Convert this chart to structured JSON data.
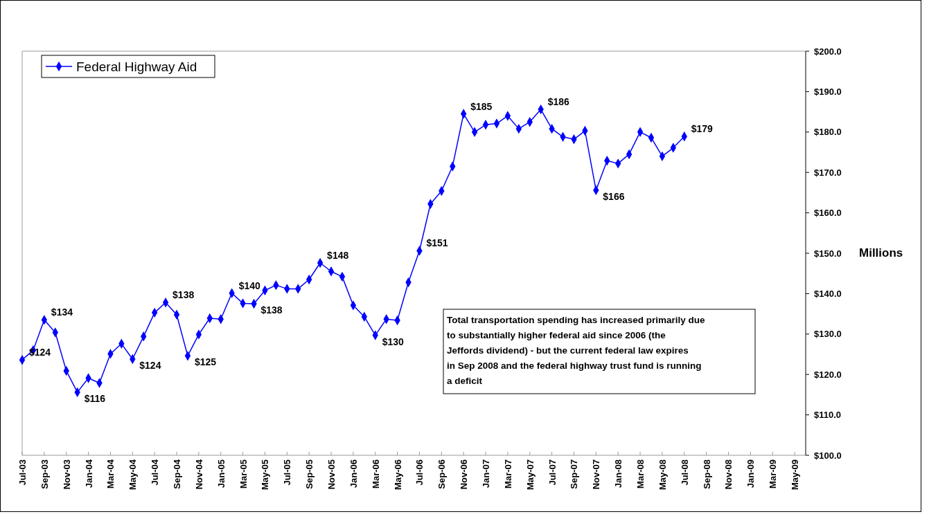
{
  "chart_data": {
    "type": "line",
    "categories": [
      "Jul-03",
      null,
      "Sep-03",
      null,
      "Nov-03",
      null,
      "Jan-04",
      null,
      "Mar-04",
      null,
      "May-04",
      null,
      "Jul-04",
      null,
      "Sep-04",
      null,
      "Nov-04",
      null,
      "Jan-05",
      null,
      "Mar-05",
      null,
      "May-05",
      null,
      "Jul-05",
      null,
      "Sep-05",
      null,
      "Nov-05",
      null,
      "Jan-06",
      null,
      "Mar-06",
      null,
      "May-06",
      null,
      "Jul-06",
      null,
      "Sep-06",
      null,
      "Nov-06",
      null,
      "Jan-07",
      null,
      "Mar-07",
      null,
      "May-07",
      null,
      "Jul-07",
      null,
      "Sep-07",
      null,
      "Nov-07",
      null,
      "Jan-08",
      null,
      "Mar-08",
      null,
      "May-08",
      null,
      "Jul-08",
      null,
      "Sep-08",
      null,
      "Nov-08",
      null,
      "Jan-09",
      null,
      "Mar-09",
      null,
      "May-09",
      null
    ],
    "series": [
      {
        "name": "Federal Highway Aid",
        "color": "#0000ff",
        "values": [
          123.6,
          126.0,
          133.5,
          130.4,
          120.9,
          115.6,
          119.1,
          117.9,
          125.1,
          127.6,
          123.8,
          129.4,
          135.3,
          137.8,
          134.8,
          124.6,
          129.9,
          133.9,
          133.7,
          140.1,
          137.6,
          137.5,
          140.8,
          142.1,
          141.2,
          141.2,
          143.5,
          147.6,
          145.5,
          144.2,
          137.1,
          134.3,
          129.7,
          133.7,
          133.4,
          142.8,
          150.6,
          162.2,
          165.4,
          171.5,
          184.5,
          180.0,
          181.8,
          182.1,
          184.0,
          180.8,
          182.5,
          185.6,
          180.8,
          178.8,
          178.2,
          180.3,
          165.6,
          172.9,
          172.2,
          174.5,
          180.0,
          178.6,
          174.0,
          176.1,
          178.9,
          null,
          null,
          null,
          null,
          null,
          null,
          null,
          null,
          null,
          null,
          null
        ],
        "value_labels": [
          "$124",
          null,
          "$134",
          null,
          null,
          "$116",
          null,
          null,
          null,
          null,
          "$124",
          null,
          null,
          "$138",
          null,
          "$125",
          null,
          null,
          null,
          "$140",
          null,
          "$138",
          null,
          null,
          null,
          null,
          null,
          "$148",
          null,
          null,
          null,
          null,
          "$130",
          null,
          null,
          null,
          "$151",
          null,
          null,
          null,
          "$185",
          null,
          null,
          null,
          null,
          null,
          null,
          "$186",
          null,
          null,
          null,
          null,
          "$166",
          null,
          null,
          null,
          null,
          null,
          null,
          null,
          "$179",
          null,
          null,
          null,
          null,
          null,
          null,
          null,
          null,
          null,
          null,
          null
        ]
      }
    ],
    "ylim": [
      100,
      200
    ],
    "yticks": [
      {
        "value": 100,
        "label": "$100.0"
      },
      {
        "value": 110,
        "label": "$110.0"
      },
      {
        "value": 120,
        "label": "$120.0"
      },
      {
        "value": 130,
        "label": "$130.0"
      },
      {
        "value": 140,
        "label": "$140.0"
      },
      {
        "value": 150,
        "label": "$150.0"
      },
      {
        "value": 160,
        "label": "$160.0"
      },
      {
        "value": 170,
        "label": "$170.0"
      },
      {
        "value": 180,
        "label": "$180.0"
      },
      {
        "value": 190,
        "label": "$190.0"
      },
      {
        "value": 200,
        "label": "$200.0"
      }
    ],
    "ylabel": "Millions",
    "annotations": [
      "Total transportation spending has increased primarily due to substantially higher federal aid since 2006 (the Jeffords dividend) - but the current federal law expires in Sep 2008 and the federal highway trust fund is running a deficit"
    ],
    "marker": "diamond",
    "line_style": "solid",
    "legend": "top left",
    "grid": false
  }
}
